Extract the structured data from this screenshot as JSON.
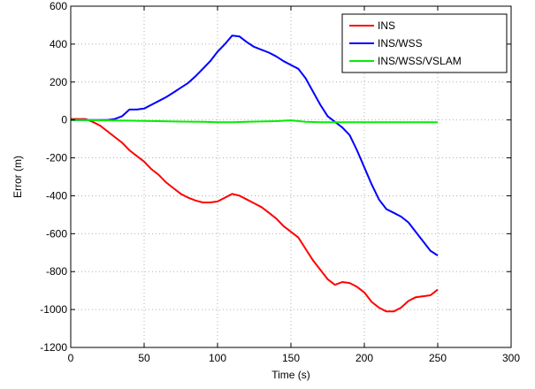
{
  "chart_data": {
    "type": "line",
    "xlabel": "Time (s)",
    "ylabel": "Error (m)",
    "xlim": [
      0,
      300
    ],
    "ylim": [
      -1200,
      600
    ],
    "xticks": [
      0,
      50,
      100,
      150,
      200,
      250,
      300
    ],
    "yticks": [
      -1200,
      -1000,
      -800,
      -600,
      -400,
      -200,
      0,
      200,
      400,
      600
    ],
    "grid": true,
    "legend": "top-right",
    "series": [
      {
        "name": "INS",
        "color": "#ff0000",
        "x": [
          0,
          5,
          10,
          15,
          20,
          25,
          30,
          35,
          40,
          45,
          50,
          55,
          60,
          65,
          70,
          75,
          80,
          85,
          90,
          95,
          100,
          105,
          110,
          115,
          120,
          125,
          130,
          135,
          140,
          145,
          150,
          155,
          160,
          165,
          170,
          175,
          180,
          185,
          190,
          195,
          200,
          205,
          210,
          215,
          220,
          225,
          230,
          235,
          240,
          245,
          250
        ],
        "values": [
          5,
          5,
          5,
          -10,
          -30,
          -60,
          -90,
          -120,
          -160,
          -190,
          -220,
          -260,
          -290,
          -330,
          -360,
          -390,
          -410,
          -425,
          -435,
          -435,
          -430,
          -410,
          -390,
          -400,
          -420,
          -440,
          -460,
          -490,
          -520,
          -560,
          -590,
          -620,
          -680,
          -740,
          -790,
          -840,
          -870,
          -855,
          -860,
          -880,
          -910,
          -960,
          -990,
          -1010,
          -1010,
          -990,
          -955,
          -935,
          -930,
          -925,
          -895
        ]
      },
      {
        "name": "INS/WSS",
        "color": "#0000ff",
        "x": [
          0,
          5,
          10,
          15,
          20,
          25,
          30,
          35,
          40,
          45,
          50,
          55,
          60,
          65,
          70,
          75,
          80,
          85,
          90,
          95,
          100,
          105,
          110,
          115,
          120,
          125,
          130,
          135,
          140,
          145,
          150,
          155,
          160,
          165,
          170,
          175,
          180,
          185,
          190,
          195,
          200,
          205,
          210,
          215,
          220,
          225,
          230,
          235,
          240,
          245,
          250
        ],
        "values": [
          0,
          0,
          0,
          0,
          0,
          0,
          5,
          20,
          55,
          55,
          60,
          80,
          100,
          120,
          145,
          170,
          195,
          230,
          270,
          310,
          360,
          400,
          445,
          440,
          410,
          385,
          370,
          355,
          335,
          310,
          290,
          270,
          220,
          150,
          80,
          20,
          -10,
          -40,
          -80,
          -160,
          -250,
          -340,
          -420,
          -470,
          -490,
          -510,
          -540,
          -590,
          -640,
          -690,
          -715
        ]
      },
      {
        "name": "INS/WSS/VSLAM",
        "color": "#00ee00",
        "x": [
          0,
          10,
          20,
          30,
          40,
          50,
          60,
          70,
          80,
          90,
          100,
          110,
          120,
          130,
          140,
          150,
          160,
          170,
          180,
          190,
          200,
          210,
          220,
          230,
          240,
          250
        ],
        "values": [
          0,
          0,
          -2,
          -3,
          -4,
          -5,
          -6,
          -8,
          -9,
          -10,
          -12,
          -12,
          -10,
          -8,
          -6,
          -2,
          -10,
          -12,
          -12,
          -12,
          -12,
          -12,
          -12,
          -12,
          -12,
          -12
        ]
      }
    ]
  }
}
